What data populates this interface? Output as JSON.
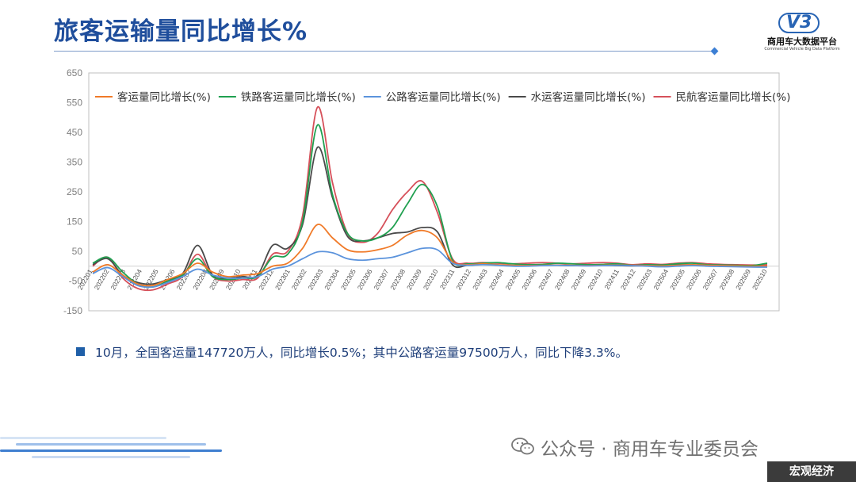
{
  "header": {
    "title": "旅客运输量同比增长%"
  },
  "logo": {
    "mark": "V3",
    "name": "商用车大数据平台",
    "subtitle": "Commercial Vehicle Big Data Platform"
  },
  "chart_data": {
    "type": "line",
    "ylim": [
      -150,
      650
    ],
    "yticks": [
      650,
      550,
      450,
      350,
      250,
      150,
      50,
      -50,
      -150
    ],
    "legend_position": "top",
    "grid": false,
    "x": [
      "202201",
      "202202",
      "202203",
      "202204",
      "202205",
      "202206",
      "202207",
      "202208",
      "202209",
      "202210",
      "202211",
      "202212",
      "202301",
      "202302",
      "202303",
      "202304",
      "202305",
      "202306",
      "202307",
      "202308",
      "202309",
      "202310",
      "202311",
      "202312",
      "202401",
      "202402",
      "202403",
      "202404",
      "202405",
      "202406",
      "202407",
      "202408",
      "202409",
      "202410",
      "202411",
      "202412",
      "202501",
      "202502",
      "202503",
      "202504",
      "202505",
      "202506",
      "202507",
      "202508",
      "202509",
      "202510"
    ],
    "x_tick_labels": [
      "202201",
      "202202",
      "202203",
      "202204",
      "202205",
      "202206",
      "202207",
      "202208",
      "202209",
      "202210",
      "202211",
      "202212",
      "202301",
      "202302",
      "202303",
      "202304",
      "202305",
      "202306",
      "202307",
      "202308",
      "202309",
      "202310",
      "202311",
      "202312",
      "202403",
      "202404",
      "202405",
      "202406",
      "202407",
      "202408",
      "202409",
      "202410",
      "202411",
      "202412",
      "202503",
      "202504",
      "202505",
      "202506",
      "202507",
      "202508",
      "202509",
      "202510"
    ],
    "series": [
      {
        "name": "客运量同比增长(%)",
        "color": "#f07a28",
        "values": [
          -20,
          5,
          -30,
          -60,
          -65,
          -45,
          -25,
          10,
          -20,
          -35,
          -30,
          -25,
          0,
          10,
          60,
          140,
          95,
          55,
          48,
          55,
          70,
          105,
          120,
          95,
          15,
          5,
          8,
          5,
          3,
          2,
          3,
          4,
          3,
          2,
          3,
          4,
          3,
          2,
          1,
          3,
          5,
          3,
          2,
          1,
          0,
          0.5
        ]
      },
      {
        "name": "铁路客运量同比增长(%)",
        "color": "#20a050",
        "values": [
          10,
          30,
          -20,
          -60,
          -70,
          -50,
          -30,
          25,
          -35,
          -45,
          -40,
          -35,
          30,
          40,
          150,
          475,
          240,
          110,
          85,
          95,
          130,
          210,
          275,
          200,
          20,
          8,
          10,
          12,
          8,
          5,
          6,
          10,
          8,
          5,
          6,
          8,
          3,
          5,
          4,
          8,
          10,
          5,
          4,
          3,
          2,
          10
        ]
      },
      {
        "name": "公路客运量同比增长(%)",
        "color": "#5b93dc",
        "values": [
          -25,
          -5,
          -35,
          -65,
          -70,
          -55,
          -35,
          -10,
          -30,
          -40,
          -40,
          -35,
          -10,
          0,
          25,
          48,
          45,
          25,
          20,
          25,
          30,
          45,
          60,
          55,
          10,
          3,
          5,
          3,
          0,
          0,
          2,
          3,
          2,
          1,
          2,
          3,
          2,
          0,
          -2,
          0,
          2,
          0,
          -1,
          -2,
          -3,
          -3.3
        ]
      },
      {
        "name": "水运客运量同比增长(%)",
        "color": "#4a4a4a",
        "values": [
          5,
          25,
          -30,
          -55,
          -60,
          -45,
          -25,
          70,
          -30,
          -40,
          -35,
          -30,
          70,
          60,
          140,
          400,
          230,
          100,
          85,
          95,
          110,
          115,
          130,
          115,
          5,
          3,
          6,
          4,
          2,
          3,
          4,
          3,
          2,
          2,
          3,
          2,
          1,
          2,
          3,
          5,
          4,
          2,
          1,
          2,
          1,
          0
        ]
      },
      {
        "name": "民航客运量同比增长(%)",
        "color": "#d6505a",
        "values": [
          0,
          30,
          -40,
          -75,
          -80,
          -60,
          -35,
          40,
          -35,
          -50,
          -45,
          -40,
          40,
          50,
          170,
          535,
          280,
          110,
          80,
          110,
          190,
          250,
          285,
          180,
          25,
          10,
          12,
          10,
          8,
          10,
          12,
          10,
          8,
          10,
          12,
          10,
          5,
          8,
          6,
          10,
          12,
          8,
          6,
          5,
          4,
          5
        ]
      }
    ]
  },
  "note": {
    "text": "10月，全国客运量147720万人，同比增长0.5%；其中公路客运量97500万人，同比下降3.3%。"
  },
  "footer": {
    "wechat": "公众号 · 商用车专业委员会",
    "tag": "宏观经济"
  }
}
